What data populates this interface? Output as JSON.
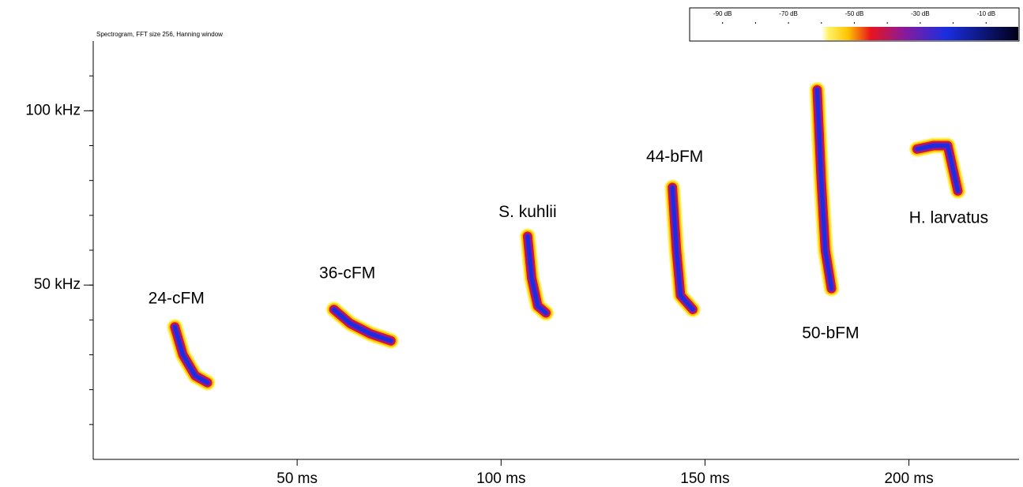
{
  "chart_data": {
    "type": "spectrogram",
    "subtitle": "Spectrogram, FFT size 256, Hanning window",
    "xlim": [
      0,
      227
    ],
    "xticks": [
      {
        "value": 50,
        "label": "50 ms"
      },
      {
        "value": 100,
        "label": "100 ms"
      },
      {
        "value": 150,
        "label": "150 ms"
      },
      {
        "value": 200,
        "label": "200 ms"
      }
    ],
    "ylim": [
      0,
      120
    ],
    "yticks": [
      {
        "value": 50,
        "label": "50 kHz"
      },
      {
        "value": 100,
        "label": "100 kHz"
      }
    ],
    "yminorticks": [
      10,
      20,
      30,
      40,
      50,
      60,
      70,
      80,
      90,
      100,
      110
    ],
    "calls": [
      {
        "label": "24-cFM",
        "x": [
          20,
          22,
          25,
          28
        ],
        "y": [
          38,
          30,
          24,
          22
        ]
      },
      {
        "label": "36-cFM",
        "x": [
          59,
          63,
          68,
          73
        ],
        "y": [
          43,
          39,
          36,
          34
        ]
      },
      {
        "label": "S. kuhlii",
        "x": [
          106.5,
          107.5,
          109,
          111
        ],
        "y": [
          64,
          52,
          44,
          42
        ]
      },
      {
        "label": "44-bFM",
        "x": [
          142,
          143,
          144,
          147
        ],
        "y": [
          78,
          60,
          47,
          43
        ]
      },
      {
        "label": "50-bFM",
        "x": [
          177.5,
          178.5,
          179.5,
          181
        ],
        "y": [
          106,
          80,
          60,
          49
        ]
      },
      {
        "label": "H. larvatus",
        "x": [
          202,
          206,
          209.5,
          212
        ],
        "y": [
          89,
          90,
          90,
          77
        ]
      }
    ],
    "colorbar": {
      "lim": [
        -100,
        0
      ],
      "ticks": [
        {
          "value": -90,
          "label": "-90 dB"
        },
        {
          "value": -70,
          "label": "-70 dB"
        },
        {
          "value": -50,
          "label": "-50 dB"
        },
        {
          "value": -30,
          "label": "-30 dB"
        },
        {
          "value": -10,
          "label": "-10 dB"
        }
      ],
      "minorticks": [
        -90,
        -80,
        -70,
        -60,
        -50,
        -40,
        -30,
        -20,
        -10
      ],
      "colormap": [
        {
          "value": -60,
          "color": "#ffffff"
        },
        {
          "value": -58,
          "color": "#fff36a"
        },
        {
          "value": -52,
          "color": "#ffc400"
        },
        {
          "value": -45,
          "color": "#e8141c"
        },
        {
          "value": -35,
          "color": "#8a1a9a"
        },
        {
          "value": -22,
          "color": "#1a2ee0"
        },
        {
          "value": 0,
          "color": "#000018"
        }
      ]
    }
  }
}
